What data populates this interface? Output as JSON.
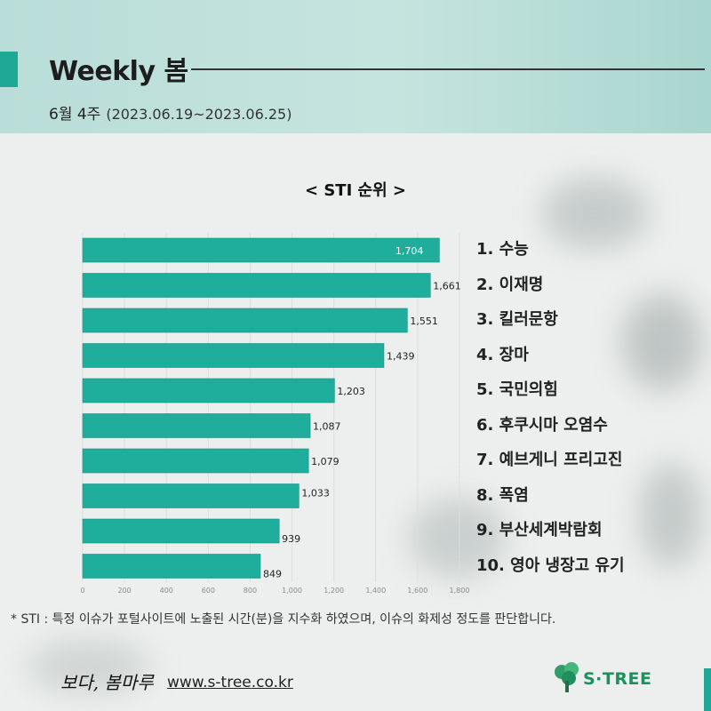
{
  "header": {
    "title": "Weekly 봄",
    "week": "6월 4주",
    "date_range": "(2023.06.19~2023.06.25)"
  },
  "chart_data": {
    "type": "bar",
    "orientation": "horizontal",
    "title": "< STI 순위 >",
    "categories": [
      "1. 수능",
      "2. 이재명",
      "3. 킬러문항",
      "4. 장마",
      "5. 국민의힘",
      "6. 후쿠시마 오염수",
      "7. 예브게니 프리고진",
      "8. 폭염",
      "9. 부산세계박람회",
      "10. 영아 냉장고 유기"
    ],
    "values": [
      1704,
      1661,
      1551,
      1439,
      1203,
      1087,
      1079,
      1033,
      939,
      849
    ],
    "value_labels": [
      "1,704",
      "1,661",
      "1,551",
      "1,439",
      "1,203",
      "1,087",
      "1,079",
      "1,033",
      "939",
      "849"
    ],
    "xlim": [
      0,
      1800
    ],
    "xticks": [
      0,
      200,
      400,
      600,
      800,
      1000,
      1200,
      1400,
      1600,
      1800
    ],
    "xtick_labels": [
      "0",
      "200",
      "400",
      "600",
      "800",
      "1,000",
      "1,200",
      "1,400",
      "1,600",
      "1,800"
    ],
    "grid": true,
    "bar_color": "#1fae9c"
  },
  "footnote": "* STI : 특정 이슈가 포털사이트에 노출된 시간(분)을 지수화 하였으며, 이슈의 화제성 정도를 판단합니다.",
  "footer": {
    "signature": "보다, 봄마루",
    "url": "www.s-tree.co.kr",
    "logo_text": "S·TREE"
  },
  "colors": {
    "accent": "#1fa995",
    "header_bg": "#c2e2dd",
    "logo_green": "#1f8f5e"
  }
}
